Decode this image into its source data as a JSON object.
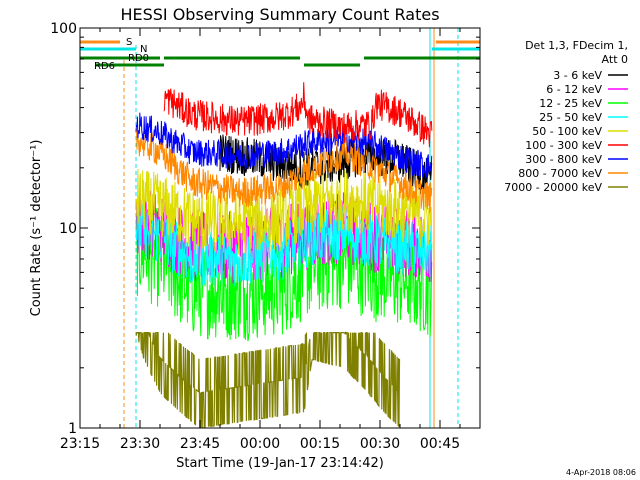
{
  "chart_data": {
    "type": "line",
    "title": "HESSI Observing Summary Count Rates",
    "xlabel": "Start Time (19-Jan-17 23:14:42)",
    "ylabel": "Count Rate (s⁻¹ detector⁻¹)",
    "y_scale": "log",
    "ylim": [
      1,
      100
    ],
    "xlim_minutes_after_2315": [
      0,
      100
    ],
    "x_tick_labels": [
      "23:15",
      "23:30",
      "23:45",
      "00:00",
      "00:15",
      "00:30",
      "00:45"
    ],
    "x_tick_minutes": [
      0,
      15,
      30,
      45,
      60,
      75,
      90
    ],
    "y_tick_labels": [
      "1",
      "10",
      "100"
    ],
    "y_tick_values": [
      1,
      10,
      100
    ],
    "legend_header": [
      "Det 1,3, FDecim 1,",
      "Att 0"
    ],
    "legend_position": "right",
    "timestamp": "4-Apr-2018 08:06",
    "flag_labels": {
      "saa": "S",
      "night": "N",
      "rd0": "RD0",
      "rd6": "RD6"
    },
    "flag_colors": {
      "saa": "#ff8c1a",
      "night": "#00e5e5",
      "rd": "#008000"
    },
    "series": [
      {
        "name": "3 - 6 keV",
        "color": "#000000",
        "points": [
          [
            35,
            24
          ],
          [
            45,
            22
          ],
          [
            55,
            20
          ],
          [
            65,
            21
          ],
          [
            70,
            23
          ],
          [
            80,
            22
          ],
          [
            88,
            17
          ]
        ]
      },
      {
        "name": "6 - 12 keV",
        "color": "#ff00ff",
        "points": [
          [
            14,
            11
          ],
          [
            20,
            10
          ],
          [
            28,
            8
          ],
          [
            40,
            8
          ],
          [
            50,
            8.5
          ],
          [
            58,
            9.5
          ],
          [
            66,
            10
          ],
          [
            74,
            9
          ],
          [
            82,
            8.5
          ],
          [
            88,
            8
          ]
        ]
      },
      {
        "name": "12 - 25 keV",
        "color": "#00ff00",
        "points": [
          [
            14,
            8
          ],
          [
            20,
            7
          ],
          [
            28,
            5
          ],
          [
            40,
            4.8
          ],
          [
            50,
            5
          ],
          [
            58,
            6.5
          ],
          [
            66,
            7
          ],
          [
            74,
            6
          ],
          [
            82,
            5.5
          ],
          [
            88,
            5
          ]
        ]
      },
      {
        "name": "25 - 50 keV",
        "color": "#00ffff",
        "points": [
          [
            14,
            10
          ],
          [
            20,
            9
          ],
          [
            28,
            7
          ],
          [
            40,
            7
          ],
          [
            50,
            7.5
          ],
          [
            58,
            9
          ],
          [
            66,
            9.5
          ],
          [
            74,
            8.5
          ],
          [
            82,
            8
          ],
          [
            88,
            7.5
          ]
        ]
      },
      {
        "name": "50 - 100 keV",
        "color": "#dddd00",
        "points": [
          [
            14,
            14
          ],
          [
            20,
            13
          ],
          [
            28,
            11
          ],
          [
            40,
            10.5
          ],
          [
            50,
            11
          ],
          [
            58,
            13
          ],
          [
            66,
            14
          ],
          [
            74,
            13
          ],
          [
            82,
            12
          ],
          [
            88,
            11
          ]
        ]
      },
      {
        "name": "100 - 300 keV",
        "color": "#ff0000",
        "points": [
          [
            21,
            45
          ],
          [
            28,
            37
          ],
          [
            40,
            34
          ],
          [
            50,
            36
          ],
          [
            55,
            40
          ],
          [
            56,
            45
          ],
          [
            57,
            35
          ],
          [
            66,
            32
          ],
          [
            73,
            33
          ],
          [
            74,
            42
          ],
          [
            80,
            38
          ],
          [
            86,
            31
          ],
          [
            88,
            29
          ]
        ]
      },
      {
        "name": "300 - 800 keV",
        "color": "#0000ff",
        "points": [
          [
            14,
            33
          ],
          [
            20,
            30
          ],
          [
            28,
            24
          ],
          [
            40,
            23
          ],
          [
            50,
            24
          ],
          [
            58,
            27
          ],
          [
            66,
            28
          ],
          [
            74,
            26
          ],
          [
            82,
            22
          ],
          [
            88,
            20
          ]
        ]
      },
      {
        "name": "800 - 7000 keV",
        "color": "#ff8800",
        "points": [
          [
            14,
            28
          ],
          [
            20,
            24
          ],
          [
            28,
            17
          ],
          [
            40,
            15
          ],
          [
            50,
            16
          ],
          [
            58,
            20
          ],
          [
            66,
            24
          ],
          [
            74,
            20
          ],
          [
            82,
            16
          ],
          [
            88,
            14
          ]
        ]
      },
      {
        "name": "7000 - 20000 keV",
        "color": "#808000",
        "points": [
          [
            14,
            3
          ],
          [
            16,
            2.2
          ],
          [
            20,
            1.5
          ],
          [
            25,
            1.2
          ],
          [
            30,
            1
          ],
          [
            56,
            1.2
          ],
          [
            58,
            2.2
          ],
          [
            66,
            2
          ],
          [
            72,
            1.5
          ],
          [
            76,
            1.2
          ],
          [
            80,
            1
          ]
        ]
      }
    ]
  }
}
